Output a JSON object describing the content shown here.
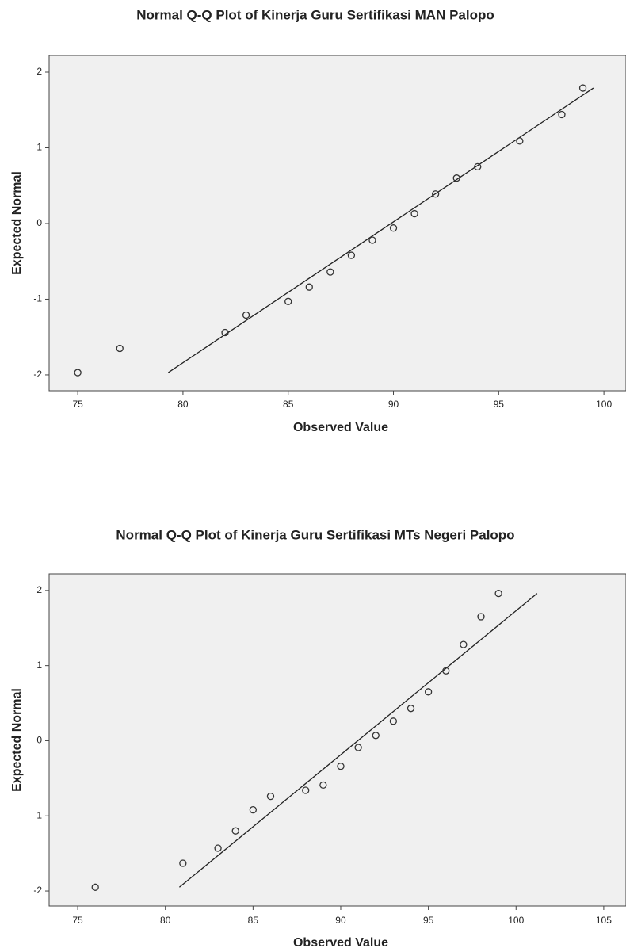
{
  "chart_data": [
    {
      "type": "scatter",
      "title": "Normal Q-Q Plot of Kinerja Guru Sertifikasi MAN Palopo",
      "x_label": "Observed Value",
      "y_label": "Expected Normal",
      "x": [
        75,
        77,
        82,
        83,
        85,
        86,
        87,
        88,
        89,
        90,
        91,
        92,
        93,
        94,
        96,
        98,
        99
      ],
      "values": [
        -1.97,
        -1.65,
        -1.44,
        -1.21,
        -1.03,
        -0.84,
        -0.64,
        -0.42,
        -0.22,
        -0.06,
        0.13,
        0.39,
        0.6,
        0.75,
        1.09,
        1.44,
        1.79
      ],
      "reference_line": {
        "x": [
          79.3,
          99.5
        ],
        "y": [
          -1.97,
          1.79
        ]
      },
      "xlim": [
        73.64,
        101.05
      ],
      "ylim": [
        -2.21,
        2.22
      ],
      "xticks": [
        75,
        80,
        85,
        90,
        95,
        100
      ],
      "yticks": [
        -2,
        -1,
        0,
        1,
        2
      ]
    },
    {
      "type": "scatter",
      "title": "Normal Q-Q Plot of Kinerja Guru Sertifikasi MTs Negeri Palopo",
      "x_label": "Observed Value",
      "y_label": "Expected Normal",
      "x": [
        76,
        81,
        83,
        84,
        85,
        86,
        88,
        89,
        90,
        91,
        92,
        93,
        94,
        95,
        96,
        97,
        98,
        99
      ],
      "values": [
        -1.95,
        -1.63,
        -1.43,
        -1.2,
        -0.92,
        -0.74,
        -0.66,
        -0.59,
        -0.34,
        -0.09,
        0.07,
        0.26,
        0.43,
        0.65,
        0.93,
        1.28,
        1.65,
        1.96
      ],
      "reference_line": {
        "x": [
          80.8,
          101.2
        ],
        "y": [
          -1.95,
          1.96
        ]
      },
      "xlim": [
        73.37,
        106.27
      ],
      "ylim": [
        -2.2,
        2.22
      ],
      "xticks": [
        75,
        80,
        85,
        90,
        95,
        100,
        105
      ],
      "yticks": [
        -2,
        -1,
        0,
        1,
        2
      ]
    }
  ]
}
